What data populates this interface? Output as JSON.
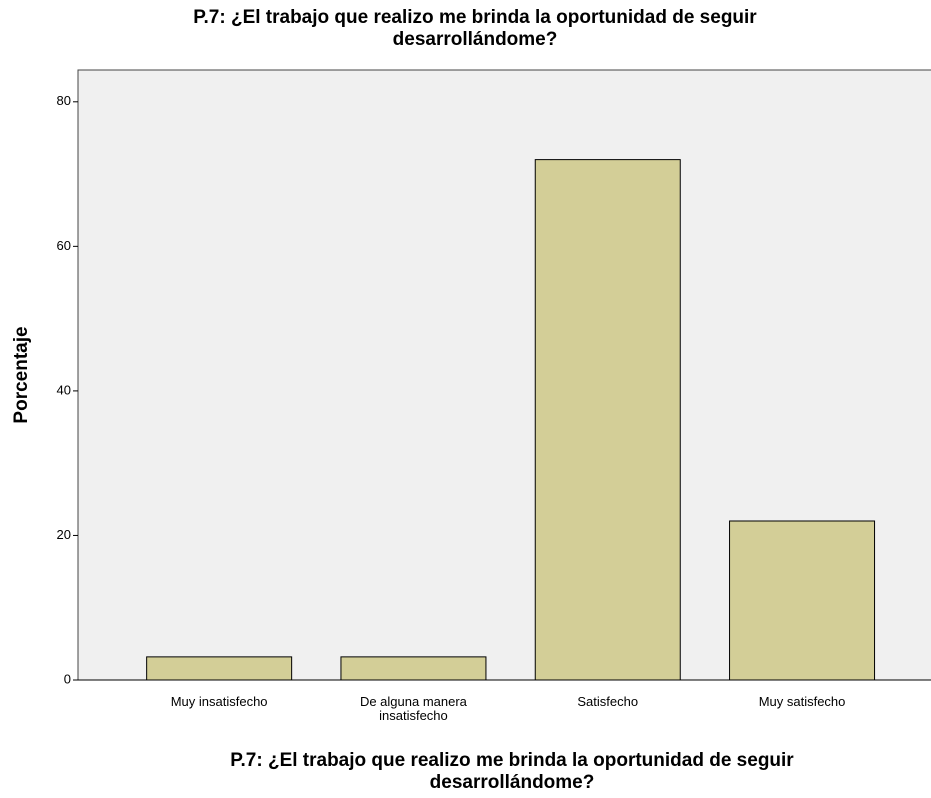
{
  "chart_data": {
    "type": "bar",
    "title": [
      "P.7: ¿El trabajo que realizo me brinda la oportunidad de seguir",
      "desarrollándome?"
    ],
    "x_label": [
      "P.7: ¿El trabajo que realizo me brinda la oportunidad de seguir",
      "desarrollándome?"
    ],
    "y_label": "Porcentaje",
    "categories": [
      "Muy insatisfecho",
      "De alguna manera insatisfecho",
      "Satisfecho",
      "Muy satisfecho"
    ],
    "values": [
      3.2,
      3.2,
      72,
      22
    ],
    "color": "#d3ce97",
    "ylim": [
      0,
      84.4
    ],
    "yticks": [
      0,
      20,
      40,
      60,
      80
    ],
    "grid": false
  }
}
